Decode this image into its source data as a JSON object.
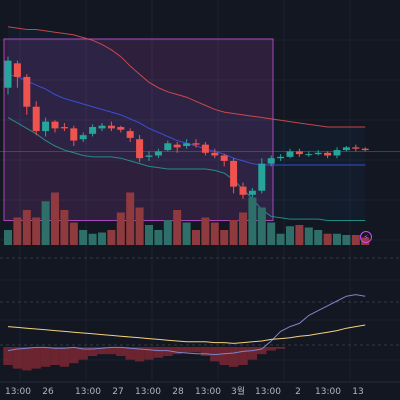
{
  "chart_data": {
    "type": "candlestick",
    "grid": true,
    "colors": {
      "up": "#26a69a",
      "down": "#ef5350",
      "up_volume": "#2f6f6a",
      "down_volume": "#8f3a3e",
      "bollinger_upper": "#ef5350",
      "bollinger_basis": "#3d5afe",
      "bollinger_lower": "#26a69a",
      "selection": "#ab47bc",
      "indicator_line": "#7e85c8",
      "signal_line": "#f5d17c",
      "histogram": "#8a2a35",
      "price_line": "#e040fb"
    },
    "price_range": [
      0,
      100
    ],
    "candles": [
      {
        "o": 60,
        "c": 80,
        "h": 83,
        "l": 55
      },
      {
        "o": 78,
        "c": 68,
        "h": 80,
        "l": 60
      },
      {
        "o": 68,
        "c": 46,
        "h": 70,
        "l": 40
      },
      {
        "o": 46,
        "c": 28,
        "h": 50,
        "l": 25
      },
      {
        "o": 28,
        "c": 35,
        "h": 38,
        "l": 24
      },
      {
        "o": 35,
        "c": 30,
        "h": 36,
        "l": 27
      },
      {
        "o": 31,
        "c": 30,
        "h": 34,
        "l": 28
      },
      {
        "o": 30,
        "c": 21,
        "h": 32,
        "l": 17
      },
      {
        "o": 22,
        "c": 25,
        "h": 27,
        "l": 20
      },
      {
        "o": 26,
        "c": 31,
        "h": 33,
        "l": 24
      },
      {
        "o": 30,
        "c": 32,
        "h": 34,
        "l": 28
      },
      {
        "o": 32,
        "c": 30,
        "h": 35,
        "l": 28
      },
      {
        "o": 31,
        "c": 29,
        "h": 32,
        "l": 27
      },
      {
        "o": 28,
        "c": 23,
        "h": 30,
        "l": 20
      },
      {
        "o": 22,
        "c": 8,
        "h": 25,
        "l": 5
      },
      {
        "o": 9,
        "c": 10,
        "h": 13,
        "l": 6
      },
      {
        "o": 10,
        "c": 13,
        "h": 15,
        "l": 8
      },
      {
        "o": 14,
        "c": 19,
        "h": 21,
        "l": 13
      },
      {
        "o": 18,
        "c": 16,
        "h": 20,
        "l": 12
      },
      {
        "o": 17,
        "c": 19,
        "h": 22,
        "l": 15
      },
      {
        "o": 19,
        "c": 18,
        "h": 22,
        "l": 16
      },
      {
        "o": 18,
        "c": 12,
        "h": 20,
        "l": 10
      },
      {
        "o": 12,
        "c": 10,
        "h": 15,
        "l": 8
      },
      {
        "o": 10,
        "c": 6,
        "h": 11,
        "l": 2
      },
      {
        "o": 6,
        "c": -13,
        "h": 8,
        "l": -18
      },
      {
        "o": -13,
        "c": -19,
        "h": -10,
        "l": -22
      },
      {
        "o": -19,
        "c": -16,
        "h": -14,
        "l": -21
      },
      {
        "o": -16,
        "c": 4,
        "h": 8,
        "l": -18
      },
      {
        "o": 4,
        "c": 8,
        "h": 10,
        "l": 2
      },
      {
        "o": 8,
        "c": 9,
        "h": 11,
        "l": 6
      },
      {
        "o": 9,
        "c": 13,
        "h": 15,
        "l": 8
      },
      {
        "o": 13,
        "c": 11,
        "h": 15,
        "l": 9
      },
      {
        "o": 11,
        "c": 11,
        "h": 13,
        "l": 9
      },
      {
        "o": 11,
        "c": 12,
        "h": 14,
        "l": 10
      },
      {
        "o": 12,
        "c": 10,
        "h": 13,
        "l": 8
      },
      {
        "o": 10,
        "c": 14,
        "h": 16,
        "l": 8
      },
      {
        "o": 14,
        "c": 16,
        "h": 17,
        "l": 13
      },
      {
        "o": 16,
        "c": 15,
        "h": 18,
        "l": 13
      },
      {
        "o": 15,
        "c": 14,
        "h": 16,
        "l": 13
      }
    ],
    "volume": [
      12,
      22,
      28,
      22,
      35,
      42,
      28,
      18,
      12,
      9,
      10,
      12,
      26,
      42,
      30,
      16,
      12,
      20,
      28,
      18,
      12,
      22,
      18,
      12,
      20,
      26,
      38,
      30,
      18,
      9,
      15,
      16,
      14,
      12,
      9,
      9,
      8,
      8,
      6
    ],
    "bollinger_upper": [
      105,
      104,
      103,
      103,
      102,
      101,
      100,
      99,
      97,
      95,
      92,
      88,
      83,
      76,
      70,
      64,
      60,
      57,
      55,
      53,
      50,
      47,
      44,
      42,
      41,
      40,
      39,
      38,
      37,
      36,
      35,
      34,
      33,
      32,
      31,
      31,
      31,
      31,
      31
    ],
    "bollinger_basis": [
      70,
      68,
      65,
      62,
      59,
      55,
      52,
      50,
      48,
      46,
      44,
      42,
      40,
      37,
      34,
      30,
      27,
      24,
      21,
      19,
      17,
      15,
      13,
      11,
      8,
      6,
      4,
      3,
      3,
      3,
      3,
      3,
      3,
      3,
      3,
      3,
      3,
      3,
      3
    ],
    "bollinger_lower": [
      38,
      34,
      30,
      26,
      21,
      17,
      14,
      12,
      10,
      9,
      9,
      9,
      8,
      6,
      4,
      2,
      1,
      0,
      0,
      0,
      0,
      0,
      -1,
      -3,
      -8,
      -15,
      -22,
      -30,
      -35,
      -36,
      -37,
      -37,
      -37,
      -37,
      -38,
      -38,
      -38,
      -38,
      -38
    ],
    "selection": {
      "from_index": 0,
      "to_index": 25,
      "price_top": 96,
      "price_bottom": -38
    },
    "current_price_level": 13,
    "oscillator": {
      "range": [
        0,
        100
      ],
      "line": [
        18,
        20,
        21,
        22,
        22,
        21,
        21,
        22,
        20,
        20,
        21,
        22,
        22,
        21,
        20,
        19,
        18,
        18,
        16,
        15,
        14,
        14,
        13,
        14,
        15,
        17,
        18,
        20,
        30,
        42,
        48,
        52,
        62,
        68,
        74,
        80,
        86,
        88,
        86
      ],
      "signal": [
        48,
        47,
        46,
        45,
        44,
        43,
        42,
        41,
        40,
        39,
        38,
        37,
        36,
        35,
        34,
        33,
        32,
        31,
        30,
        29,
        29,
        29,
        28,
        28,
        27,
        28,
        29,
        30,
        32,
        33,
        34,
        36,
        37,
        39,
        41,
        43,
        46,
        48,
        50
      ],
      "histogram": [
        -20,
        -24,
        -26,
        -24,
        -22,
        -20,
        -22,
        -18,
        -14,
        -10,
        -8,
        -8,
        -10,
        -14,
        -16,
        -14,
        -12,
        -10,
        -8,
        -6,
        -6,
        -10,
        -16,
        -20,
        -22,
        -20,
        -14,
        -8,
        -4,
        -2,
        0,
        0,
        0,
        0,
        0,
        0,
        0,
        0,
        0
      ]
    },
    "x_ticks": [
      {
        "index": 1,
        "label": "13:00"
      },
      {
        "index": 4,
        "label": "26"
      },
      {
        "index": 8,
        "label": "13:00"
      },
      {
        "index": 11,
        "label": "27"
      },
      {
        "index": 14,
        "label": "13:00"
      },
      {
        "index": 17,
        "label": "28"
      },
      {
        "index": 20,
        "label": "13:00"
      },
      {
        "index": 23,
        "label": "3월"
      },
      {
        "index": 26,
        "label": "13:00"
      },
      {
        "index": 29,
        "label": "2"
      },
      {
        "index": 32,
        "label": "13:00"
      },
      {
        "index": 35,
        "label": "13"
      }
    ],
    "title": "",
    "xlabel": "",
    "ylabel": ""
  },
  "indicator_badge_icon": "lightning-icon"
}
